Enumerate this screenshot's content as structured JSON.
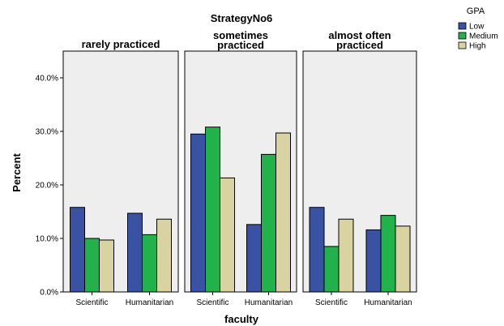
{
  "chart_data": {
    "type": "bar",
    "title": "StrategyNo6",
    "xlabel": "faculty",
    "ylabel": "Percent",
    "ylim": [
      0,
      45
    ],
    "yticks": [
      "0.0%",
      "10.0%",
      "20.0%",
      "30.0%",
      "40.0%"
    ],
    "ytick_values": [
      0,
      10,
      20,
      30,
      40
    ],
    "categories": [
      "Scientific",
      "Humanitarian"
    ],
    "legend": {
      "title": "GPA",
      "placement": "top-right",
      "entries": [
        "Low",
        "Medium",
        "High"
      ]
    },
    "colors": [
      "#3a52a3",
      "#21b24b",
      "#d9d3a2"
    ],
    "panel_background": "#eeeeee",
    "panels": [
      {
        "title_lines": [
          "rarely practiced"
        ],
        "series": [
          {
            "name": "Low",
            "values": [
              15.8,
              14.7
            ]
          },
          {
            "name": "Medium",
            "values": [
              10.0,
              10.7
            ]
          },
          {
            "name": "High",
            "values": [
              9.7,
              13.6
            ]
          }
        ]
      },
      {
        "title_lines": [
          "sometimes",
          "practiced"
        ],
        "series": [
          {
            "name": "Low",
            "values": [
              29.5,
              12.6
            ]
          },
          {
            "name": "Medium",
            "values": [
              30.8,
              25.7
            ]
          },
          {
            "name": "High",
            "values": [
              21.3,
              29.7
            ]
          }
        ]
      },
      {
        "title_lines": [
          "almost often",
          "practiced"
        ],
        "series": [
          {
            "name": "Low",
            "values": [
              15.8,
              11.6
            ]
          },
          {
            "name": "Medium",
            "values": [
              8.5,
              14.3
            ]
          },
          {
            "name": "High",
            "values": [
              13.6,
              12.3
            ]
          }
        ]
      }
    ]
  }
}
